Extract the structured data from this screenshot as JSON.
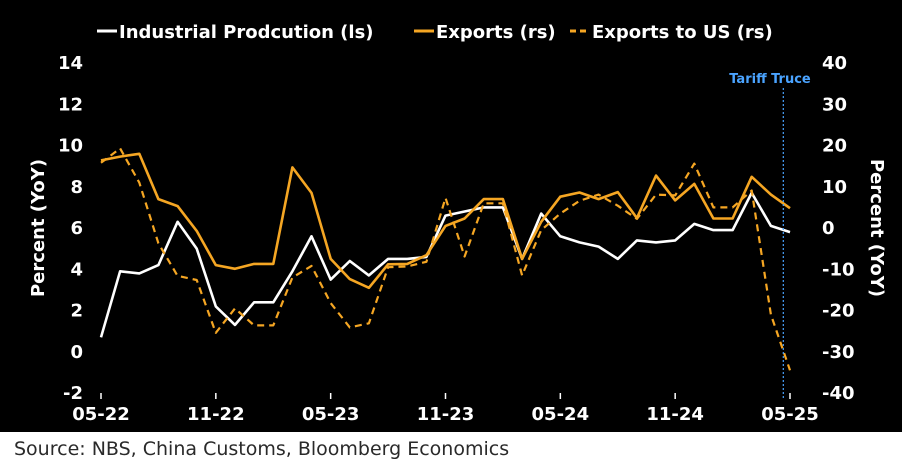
{
  "chart_data": {
    "type": "line",
    "legend": [
      "Industrial Prodcution (ls)",
      "Exports (rs)",
      "Exports to US (rs)"
    ],
    "legend_position": "top",
    "x": [
      "05-22",
      "06-22",
      "07-22",
      "08-22",
      "09-22",
      "10-22",
      "11-22",
      "12-22",
      "01-23",
      "02-23",
      "03-23",
      "04-23",
      "05-23",
      "06-23",
      "07-23",
      "08-23",
      "09-23",
      "10-23",
      "11-23",
      "12-23",
      "01-24",
      "02-24",
      "03-24",
      "04-24",
      "05-24",
      "06-24",
      "07-24",
      "08-24",
      "09-24",
      "10-24",
      "11-24",
      "12-24",
      "01-25",
      "02-25",
      "03-25",
      "04-25",
      "05-25"
    ],
    "x_tick_labels": [
      "05-22",
      "11-22",
      "05-23",
      "11-23",
      "05-24",
      "11-24",
      "05-25"
    ],
    "y_left": {
      "label": "Percent (YoY)",
      "ticks": [
        "14",
        "12",
        "10",
        "8",
        "6",
        "4",
        "2",
        "0",
        "-2"
      ],
      "range": [
        -2,
        14
      ]
    },
    "y_right": {
      "label": "Percent (YoY)",
      "ticks": [
        "40",
        "30",
        "20",
        "10",
        "0",
        "-10",
        "-20",
        "-30",
        "-40"
      ],
      "range": [
        -40,
        40
      ]
    },
    "series": [
      {
        "name": "Industrial Prodcution (ls)",
        "axis": "left",
        "color": "#ffffff",
        "dash": "solid",
        "values": [
          0.7,
          3.9,
          3.8,
          4.2,
          6.3,
          5.0,
          2.2,
          1.3,
          2.4,
          2.4,
          3.9,
          5.6,
          3.5,
          4.4,
          3.7,
          4.5,
          4.5,
          4.6,
          6.6,
          6.8,
          7.0,
          7.0,
          4.5,
          6.7,
          5.6,
          5.3,
          5.1,
          4.5,
          5.4,
          5.3,
          5.4,
          6.2,
          5.9,
          5.9,
          7.7,
          6.1,
          5.8
        ]
      },
      {
        "name": "Exports (rs)",
        "axis": "right",
        "color": "#f5a623",
        "dash": "solid",
        "values": [
          16.4,
          17.3,
          18.0,
          7.0,
          5.3,
          -0.7,
          -9.0,
          -9.9,
          -8.7,
          -8.7,
          14.7,
          8.5,
          -7.5,
          -12.4,
          -14.5,
          -8.8,
          -8.7,
          -6.6,
          0.5,
          2.3,
          7.0,
          7.0,
          -7.5,
          1.5,
          7.6,
          8.6,
          7.0,
          8.7,
          2.4,
          12.7,
          6.7,
          10.7,
          2.3,
          2.3,
          12.4,
          8.1,
          4.8
        ]
      },
      {
        "name": "Exports to US (rs)",
        "axis": "right",
        "color": "#f5a623",
        "dash": "dashed",
        "values": [
          15.8,
          19.3,
          11.0,
          -3.7,
          -11.6,
          -12.6,
          -25.4,
          -19.5,
          -23.6,
          -23.6,
          -12.0,
          -9.2,
          -18.2,
          -24.1,
          -23.1,
          -9.5,
          -9.3,
          -8.2,
          7.3,
          -6.9,
          6.0,
          6.0,
          -11.5,
          -0.5,
          3.5,
          6.6,
          8.1,
          5.4,
          2.2,
          8.1,
          7.9,
          15.6,
          5.0,
          5.0,
          9.1,
          -21.0,
          -34.5
        ]
      }
    ],
    "annotation": {
      "text": "Tariff Truce",
      "x": "05-25",
      "color": "#4aa3ff"
    }
  },
  "source": "Source: NBS, China Customs, Bloomberg Economics"
}
